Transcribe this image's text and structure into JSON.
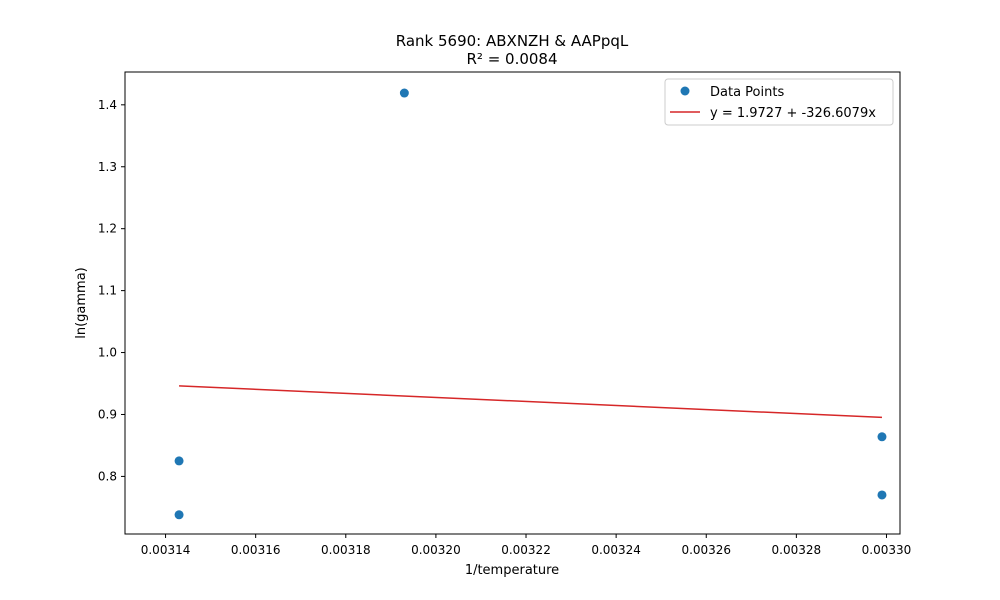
{
  "chart_data": {
    "type": "scatter",
    "title": "Rank 5690: ABXNZH & AAPpqL",
    "subtitle": "R² = 0.0084",
    "xlabel": "1/temperature",
    "ylabel": "ln(gamma)",
    "xlim": [
      0.003131,
      0.003303
    ],
    "ylim": [
      0.707,
      1.453
    ],
    "xticks": [
      0.00314,
      0.00316,
      0.00318,
      0.0032,
      0.00322,
      0.00324,
      0.00326,
      0.00328,
      0.0033
    ],
    "xtick_labels": [
      "0.00314",
      "0.00316",
      "0.00318",
      "0.00320",
      "0.00322",
      "0.00324",
      "0.00326",
      "0.00328",
      "0.00330"
    ],
    "yticks": [
      0.8,
      0.9,
      1.0,
      1.1,
      1.2,
      1.3,
      1.4
    ],
    "ytick_labels": [
      "0.8",
      "0.9",
      "1.0",
      "1.1",
      "1.2",
      "1.3",
      "1.4"
    ],
    "grid": false,
    "legend_position": "top-right",
    "series": [
      {
        "name": "Data Points",
        "kind": "scatter",
        "color": "#1f77b4",
        "points": [
          {
            "x": 0.003143,
            "y": 0.825
          },
          {
            "x": 0.003143,
            "y": 0.738
          },
          {
            "x": 0.003193,
            "y": 1.419
          },
          {
            "x": 0.003299,
            "y": 0.864
          },
          {
            "x": 0.003299,
            "y": 0.77
          }
        ]
      },
      {
        "name": "y = 1.9727 + -326.6079x",
        "kind": "line",
        "color": "#d62728",
        "intercept": 1.9727,
        "slope": -326.6079,
        "x_range": [
          0.003143,
          0.003299
        ]
      }
    ]
  }
}
